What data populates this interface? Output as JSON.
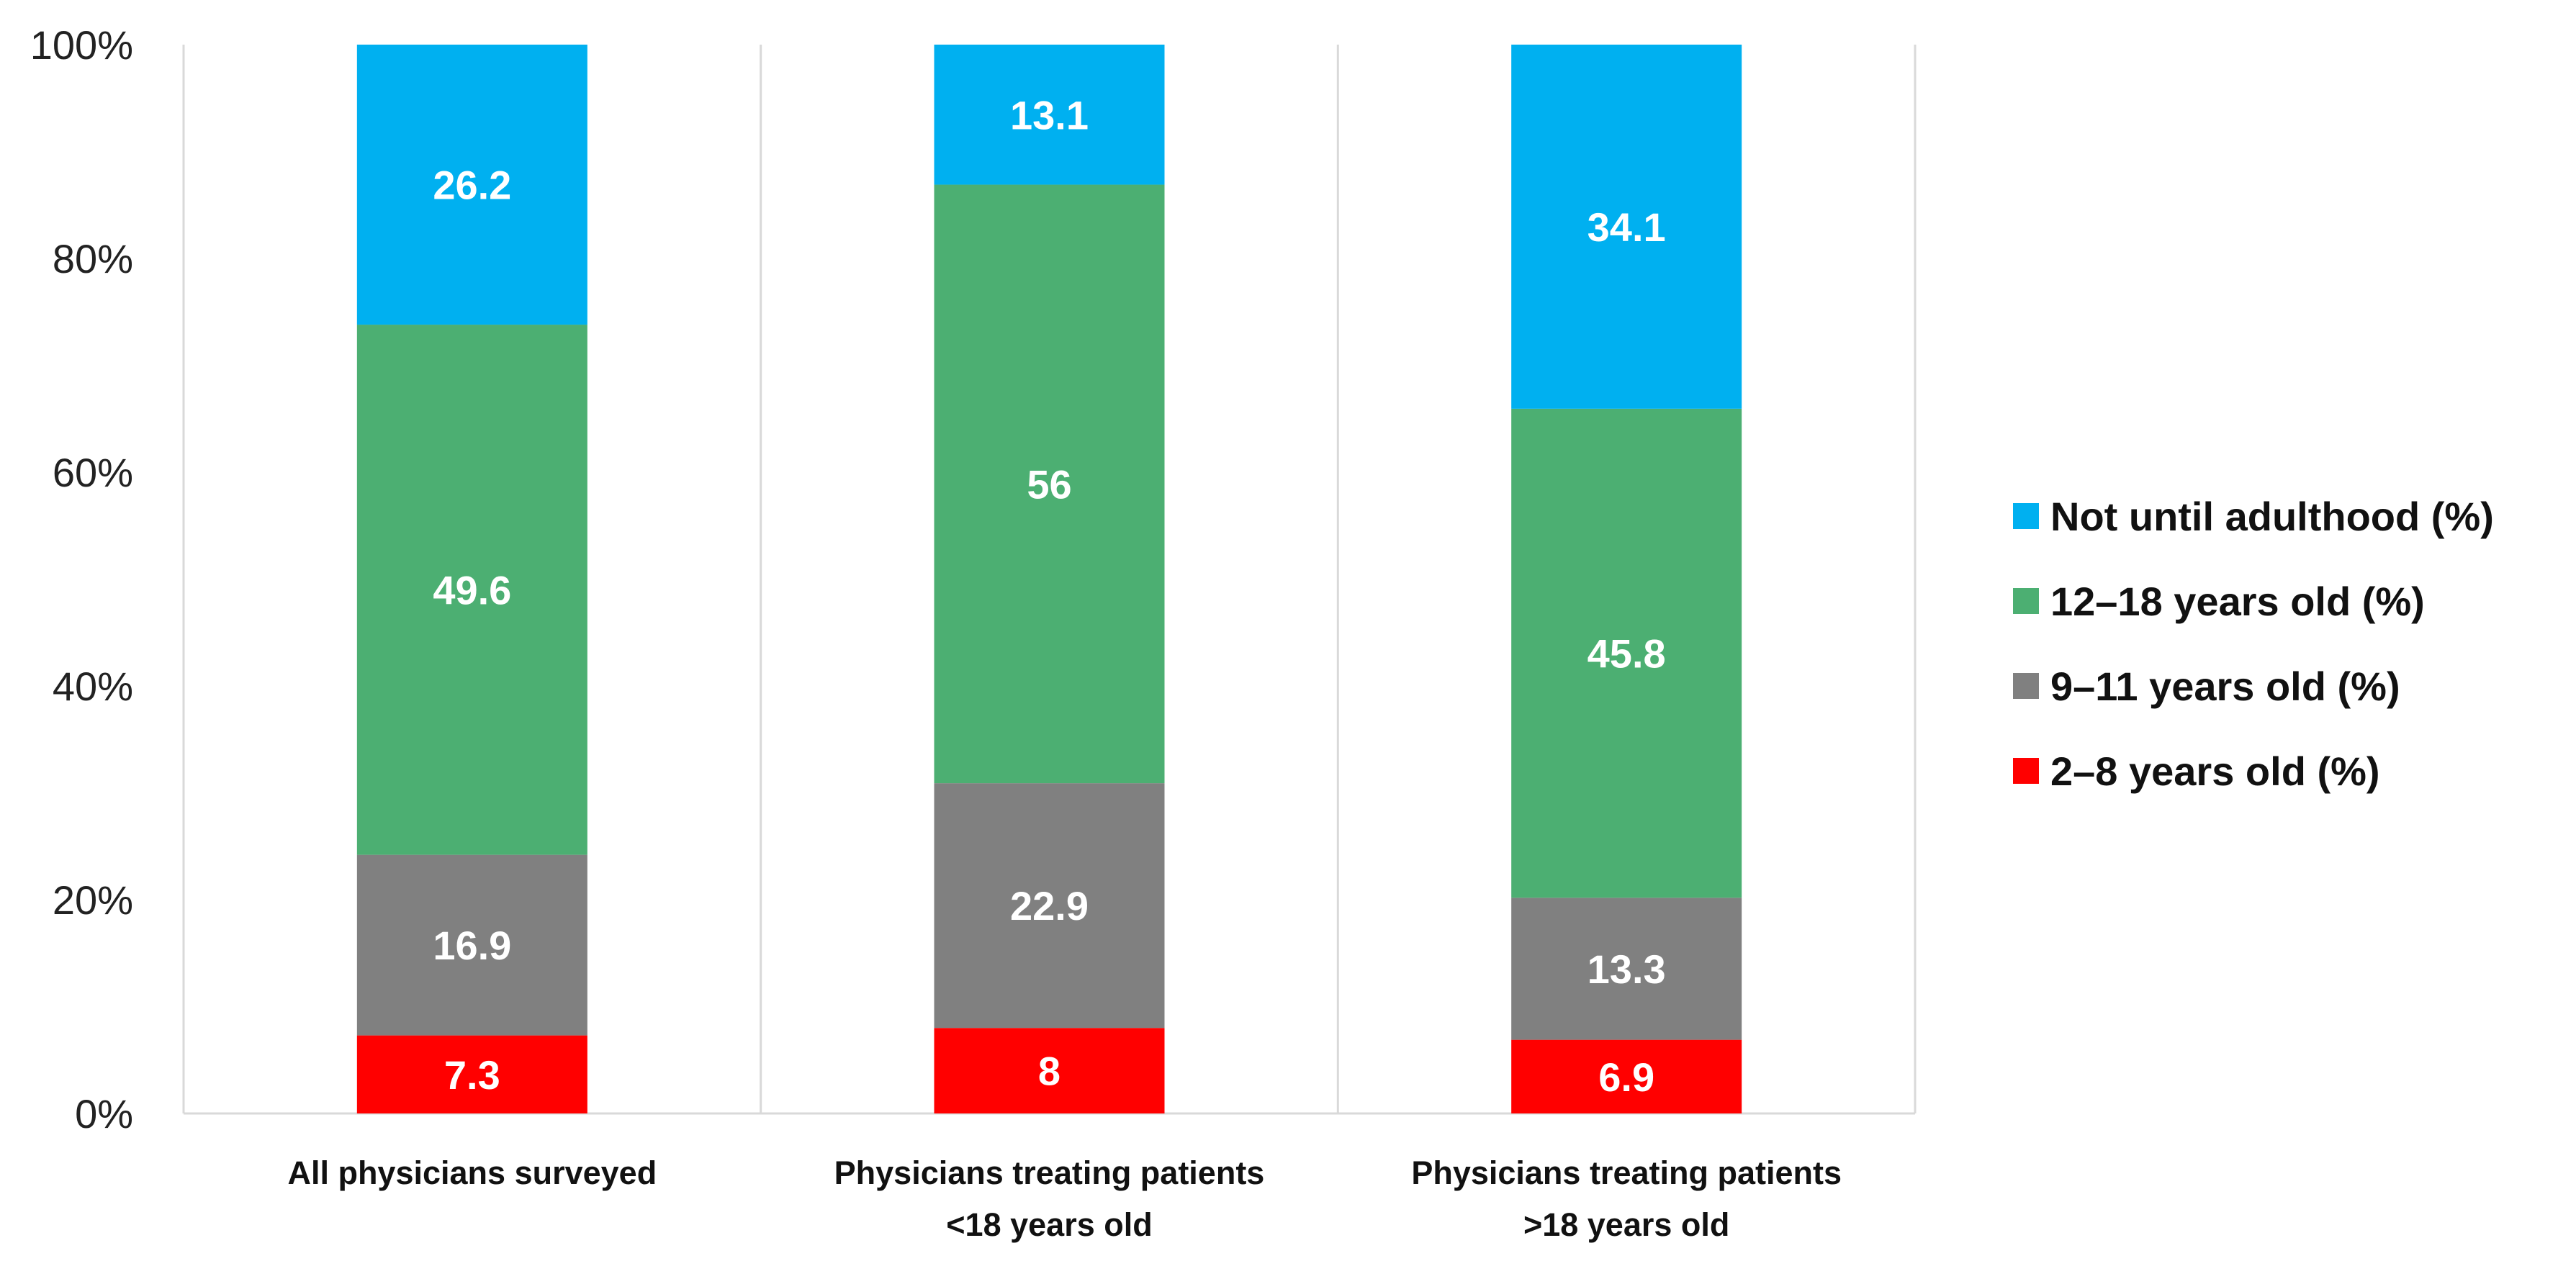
{
  "chart_data": {
    "type": "bar",
    "stacked": true,
    "percent_stacked": true,
    "categories": [
      [
        "All physicians surveyed"
      ],
      [
        "Physicians treating patients",
        "<18 years old"
      ],
      [
        "Physicians treating patients",
        ">18 years old"
      ]
    ],
    "series": [
      {
        "name": "2–8 years old (%)",
        "color": "#ff0000",
        "values": [
          7.3,
          8,
          6.9
        ]
      },
      {
        "name": "9–11 years old (%)",
        "color": "#808080",
        "values": [
          16.9,
          22.9,
          13.3
        ]
      },
      {
        "name": "12–18 years old (%)",
        "color": "#4caf72",
        "values": [
          49.6,
          56,
          45.8
        ]
      },
      {
        "name": "Not until adulthood (%)",
        "color": "#00b0f0",
        "values": [
          26.2,
          13.1,
          34.1
        ]
      }
    ],
    "data_labels": [
      [
        "7.3",
        "8",
        "6.9"
      ],
      [
        "16.9",
        "22.9",
        "13.3"
      ],
      [
        "49.6",
        "56",
        "45.8"
      ],
      [
        "26.2",
        "13.1",
        "34.1"
      ]
    ],
    "y_ticks": [
      "0%",
      "20%",
      "40%",
      "60%",
      "80%",
      "100%"
    ],
    "ylim": [
      0,
      100
    ],
    "title": "",
    "xlabel": "",
    "ylabel": "",
    "grid": true,
    "legend_position": "right",
    "legend_order": [
      "Not until adulthood (%)",
      "12–18 years old (%)",
      "9–11 years old (%)",
      "2–8 years old (%)"
    ]
  }
}
